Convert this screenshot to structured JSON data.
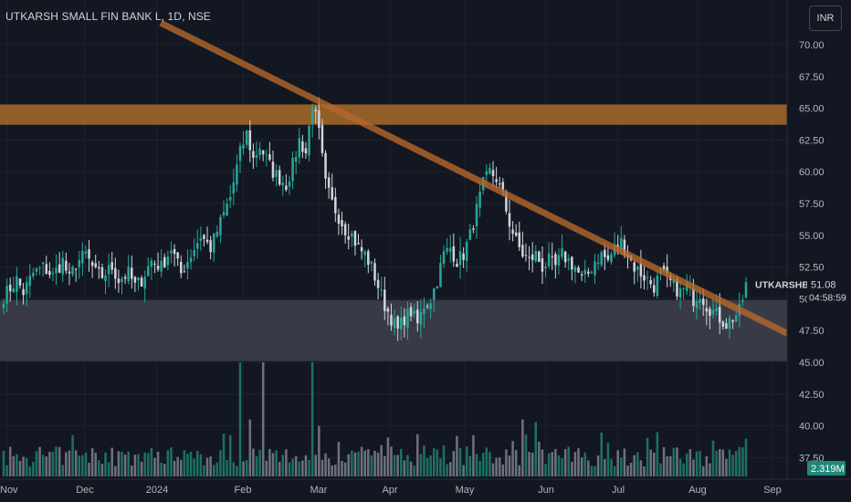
{
  "header": {
    "title": "UTKARSH SMALL FIN BANK L, 1D, NSE",
    "currency": "INR"
  },
  "price_label": {
    "symbol": "UTKARSHBNK",
    "price": "51.08",
    "countdown": "04:58:59",
    "volume": "2.319M"
  },
  "colors": {
    "background": "#131722",
    "up": "#26a69a",
    "down": "#d1d4dc",
    "volume_up": "#1e7a6f",
    "volume_down": "#787b86",
    "resistance_zone": "#c27a2a",
    "support_zone": "#3a3d49",
    "trendline": "#b8692a"
  },
  "chart_data": {
    "type": "candlestick",
    "x_ticks": [
      "Nov",
      "Dec",
      "2024",
      "Feb",
      "Mar",
      "Apr",
      "May",
      "Jun",
      "Jul",
      "Aug",
      "Sep"
    ],
    "y_ticks": [
      "70.00",
      "67.50",
      "65.00",
      "62.50",
      "60.00",
      "57.50",
      "55.00",
      "52.50",
      "50.00",
      "47.50",
      "45.00",
      "42.50",
      "40.00",
      "37.50"
    ],
    "ylim": [
      36.5,
      71.5
    ],
    "last_price": 51.08,
    "resistance_zone": [
      63.7,
      65.3
    ],
    "support_zone": [
      45.1,
      49.9
    ],
    "trendline": {
      "from": {
        "month": "Dec",
        "price": 71.0
      },
      "to": {
        "month": "Sep",
        "price": 47.0
      }
    },
    "price_path": [
      [
        0,
        50.2
      ],
      [
        4,
        51.5
      ],
      [
        6,
        50.5
      ],
      [
        9,
        52.0
      ],
      [
        12,
        52.5
      ],
      [
        15,
        51.8
      ],
      [
        18,
        53.0
      ],
      [
        20,
        51.5
      ],
      [
        22,
        52.8
      ],
      [
        25,
        53.5
      ],
      [
        28,
        52.0
      ],
      [
        30,
        51.8
      ],
      [
        33,
        52.5
      ],
      [
        35,
        51.5
      ],
      [
        38,
        52.0
      ],
      [
        40,
        51.0
      ],
      [
        42,
        51.5
      ],
      [
        45,
        53.0
      ],
      [
        48,
        52.5
      ],
      [
        51,
        54.0
      ],
      [
        54,
        52.0
      ],
      [
        57,
        53.5
      ],
      [
        60,
        55.0
      ],
      [
        63,
        54.0
      ],
      [
        66,
        56.0
      ],
      [
        69,
        58.0
      ],
      [
        72,
        61.5
      ],
      [
        74,
        63.0
      ],
      [
        76,
        61.0
      ],
      [
        78,
        62.0
      ],
      [
        80,
        61.0
      ],
      [
        82,
        60.0
      ],
      [
        84,
        59.5
      ],
      [
        86,
        59.0
      ],
      [
        88,
        60.5
      ],
      [
        90,
        62.5
      ],
      [
        92,
        61.5
      ],
      [
        94,
        65.5
      ],
      [
        96,
        63.0
      ],
      [
        98,
        59.0
      ],
      [
        100,
        57.5
      ],
      [
        102,
        56.5
      ],
      [
        104,
        55.5
      ],
      [
        106,
        55.0
      ],
      [
        108,
        54.0
      ],
      [
        110,
        53.5
      ],
      [
        112,
        52.5
      ],
      [
        114,
        51.0
      ],
      [
        116,
        49.5
      ],
      [
        118,
        48.5
      ],
      [
        120,
        47.5
      ],
      [
        122,
        48.5
      ],
      [
        124,
        49.0
      ],
      [
        126,
        48.0
      ],
      [
        128,
        49.5
      ],
      [
        130,
        50.0
      ],
      [
        132,
        51.5
      ],
      [
        134,
        53.5
      ],
      [
        136,
        54.0
      ],
      [
        138,
        53.0
      ],
      [
        140,
        53.5
      ],
      [
        142,
        55.0
      ],
      [
        144,
        57.0
      ],
      [
        146,
        59.0
      ],
      [
        148,
        60.0
      ],
      [
        150,
        59.5
      ],
      [
        152,
        58.0
      ],
      [
        154,
        56.0
      ],
      [
        156,
        54.5
      ],
      [
        158,
        53.5
      ],
      [
        160,
        53.0
      ],
      [
        162,
        53.5
      ],
      [
        164,
        52.5
      ],
      [
        166,
        53.0
      ],
      [
        168,
        52.5
      ],
      [
        170,
        53.5
      ],
      [
        172,
        53.0
      ],
      [
        174,
        52.5
      ],
      [
        176,
        51.5
      ],
      [
        178,
        52.0
      ],
      [
        180,
        53.0
      ],
      [
        182,
        53.5
      ],
      [
        184,
        53.0
      ],
      [
        186,
        54.0
      ],
      [
        188,
        54.5
      ],
      [
        190,
        53.5
      ],
      [
        192,
        52.5
      ],
      [
        194,
        52.0
      ],
      [
        196,
        51.5
      ],
      [
        198,
        51.0
      ],
      [
        200,
        52.0
      ],
      [
        202,
        51.5
      ],
      [
        204,
        51.0
      ],
      [
        206,
        50.5
      ],
      [
        208,
        51.0
      ],
      [
        210,
        50.0
      ],
      [
        212,
        50.5
      ],
      [
        214,
        49.5
      ],
      [
        216,
        49.0
      ],
      [
        218,
        48.5
      ],
      [
        220,
        48.0
      ],
      [
        222,
        48.5
      ],
      [
        224,
        49.0
      ],
      [
        225,
        50.0
      ],
      [
        226,
        51.1
      ]
    ],
    "volume_spikes": [
      [
        72,
        45.0
      ],
      [
        79,
        45.0
      ],
      [
        94,
        45.0
      ],
      [
        75,
        40.5
      ],
      [
        96,
        40.0
      ],
      [
        158,
        40.5
      ],
      [
        162,
        40.3
      ]
    ]
  }
}
